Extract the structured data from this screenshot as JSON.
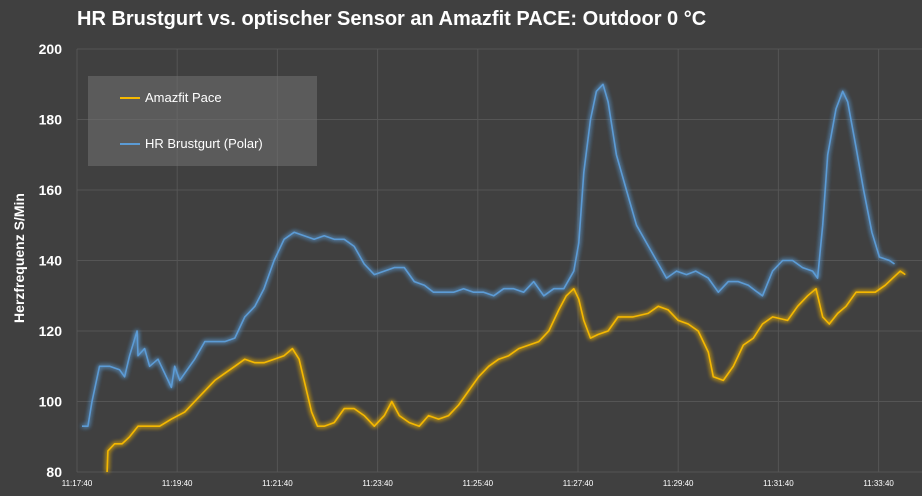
{
  "chart_data": {
    "type": "line",
    "title": "HR Brustgurt vs. optischer Sensor an Amazfit PACE: Outdoor 0 °C",
    "xlabel": "",
    "ylabel": "Herzfrequenz S/Min",
    "x_unit": "seconds since 11:17:40",
    "xlim": [
      0,
      1000
    ],
    "ylim": [
      80,
      200
    ],
    "yticks": [
      80,
      100,
      120,
      140,
      160,
      180,
      200
    ],
    "ytick_labels": [
      "80",
      "100",
      "120",
      "140",
      "160",
      "180",
      "200"
    ],
    "xticks": [
      0,
      120,
      240,
      360,
      480,
      600,
      720,
      840,
      960
    ],
    "xtick_labels": [
      "11:17:40",
      "11:19:40",
      "11:21:40",
      "11:23:40",
      "11:25:40",
      "11:27:40",
      "11:29:40",
      "11:31:40",
      "11:33:40"
    ],
    "grid": true,
    "legend_position": "top-left",
    "series": [
      {
        "name": "Amazfit Pace",
        "color": "#f5b800",
        "x": [
          36,
          37,
          45,
          54,
          63,
          73,
          87,
          99,
          113,
          129,
          141,
          153,
          165,
          177,
          189,
          201,
          213,
          224,
          236,
          248,
          258,
          266,
          272,
          281,
          288,
          296,
          308,
          320,
          332,
          344,
          356,
          368,
          377,
          386,
          398,
          410,
          421,
          433,
          445,
          457,
          469,
          481,
          493,
          505,
          517,
          529,
          541,
          553,
          565,
          577,
          586,
          595,
          601,
          607,
          615,
          624,
          636,
          648,
          666,
          684,
          696,
          708,
          720,
          732,
          744,
          756,
          762,
          774,
          786,
          798,
          810,
          821,
          833,
          851,
          863,
          875,
          885,
          893,
          901,
          911,
          921,
          933,
          944,
          956,
          968,
          977,
          986,
          992
        ],
        "y": [
          80,
          86,
          88,
          88,
          90,
          93,
          93,
          93,
          95,
          97,
          100,
          103,
          106,
          108,
          110,
          112,
          111,
          111,
          112,
          113,
          115,
          112,
          106,
          97,
          93,
          93,
          94,
          98,
          98,
          96,
          93,
          96,
          100,
          96,
          94,
          93,
          96,
          95,
          96,
          99,
          103,
          107,
          110,
          112,
          113,
          115,
          116,
          117,
          120,
          126,
          130,
          132,
          129,
          123,
          118,
          119,
          120,
          124,
          124,
          125,
          127,
          126,
          123,
          122,
          120,
          114,
          107,
          106,
          110,
          116,
          118,
          122,
          124,
          123,
          127,
          130,
          132,
          124,
          122,
          125,
          127,
          131,
          131,
          131,
          133,
          135,
          137,
          136
        ]
      },
      {
        "name": "HR Brustgurt (Polar)",
        "color": "#5b9bd5",
        "x": [
          6,
          13,
          18,
          27,
          39,
          51,
          57,
          63,
          72,
          73,
          81,
          87,
          97,
          105,
          113,
          117,
          123,
          129,
          141,
          153,
          165,
          177,
          189,
          201,
          213,
          224,
          236,
          248,
          260,
          272,
          284,
          296,
          308,
          320,
          332,
          344,
          356,
          368,
          380,
          392,
          404,
          416,
          427,
          439,
          451,
          463,
          475,
          487,
          499,
          511,
          523,
          535,
          547,
          559,
          571,
          583,
          595,
          601,
          607,
          615,
          622,
          630,
          636,
          646,
          658,
          670,
          682,
          694,
          706,
          718,
          730,
          741,
          756,
          768,
          780,
          792,
          804,
          815,
          821,
          833,
          845,
          857,
          869,
          881,
          887,
          893,
          899,
          909,
          917,
          923,
          933,
          942,
          952,
          961,
          973,
          979
        ],
        "y": [
          93,
          93,
          100,
          110,
          110,
          109,
          107,
          113,
          120,
          113,
          115,
          110,
          112,
          108,
          104,
          110,
          106,
          108,
          112,
          117,
          117,
          117,
          118,
          124,
          127,
          132,
          140,
          146,
          148,
          147,
          146,
          147,
          146,
          146,
          144,
          139,
          136,
          137,
          138,
          138,
          134,
          133,
          131,
          131,
          131,
          132,
          131,
          131,
          130,
          132,
          132,
          131,
          134,
          130,
          132,
          132,
          137,
          145,
          165,
          180,
          188,
          190,
          185,
          170,
          160,
          150,
          145,
          140,
          135,
          137,
          136,
          137,
          135,
          131,
          134,
          134,
          133,
          131,
          130,
          137,
          140,
          140,
          138,
          137,
          135,
          150,
          170,
          183,
          188,
          185,
          172,
          160,
          148,
          141,
          140,
          139
        ]
      }
    ]
  }
}
